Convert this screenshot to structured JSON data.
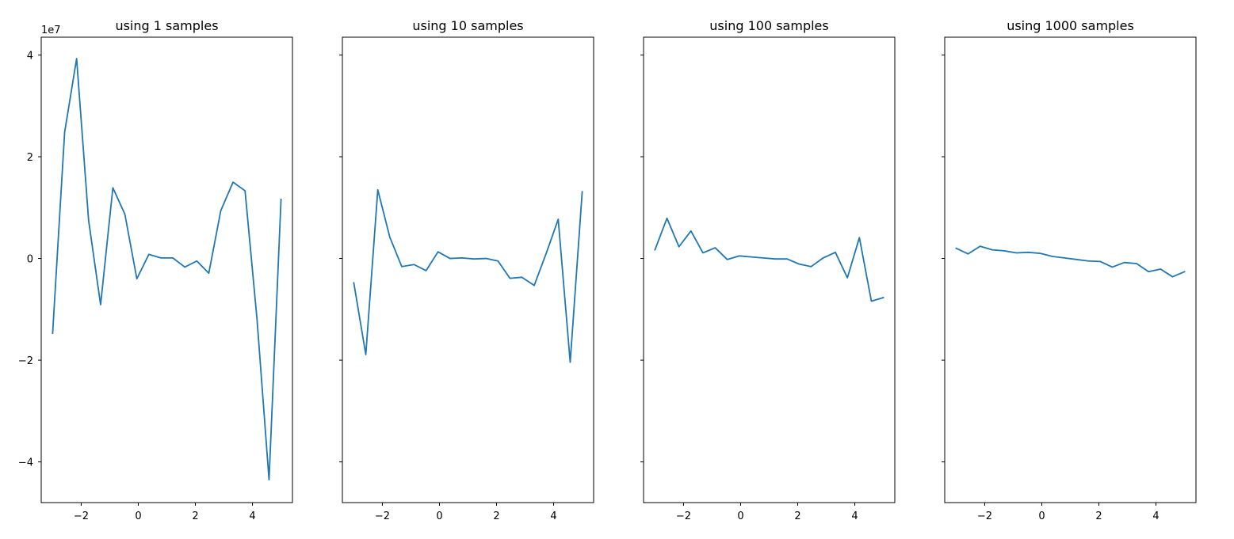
{
  "chart_data": [
    {
      "type": "line",
      "title": "using 1 samples",
      "xlabel": "",
      "ylabel": "",
      "y_offset_text": "1e7",
      "show_y_tick_labels": true,
      "xlim": [
        -3.4,
        5.4
      ],
      "ylim": [
        -4.8,
        4.35
      ],
      "y_scale_note": "values in units of 1e7",
      "x_ticks": [
        -2,
        0,
        2,
        4
      ],
      "x_tick_labels": [
        "−2",
        "0",
        "2",
        "4"
      ],
      "y_ticks": [
        -4,
        -2,
        0,
        2,
        4
      ],
      "y_tick_labels": [
        "−4",
        "−2",
        "0",
        "2",
        "4"
      ],
      "color": "#1f77b4",
      "x": [
        -3.0,
        -2.58,
        -2.16,
        -1.74,
        -1.32,
        -0.89,
        -0.47,
        -0.05,
        0.37,
        0.79,
        1.21,
        1.63,
        2.05,
        2.47,
        2.89,
        3.32,
        3.74,
        4.16,
        4.58,
        5.0
      ],
      "values": [
        -1.47,
        2.48,
        3.93,
        0.75,
        -0.91,
        1.39,
        0.87,
        -0.4,
        0.08,
        0.01,
        0.01,
        -0.17,
        -0.05,
        -0.29,
        0.94,
        1.5,
        1.33,
        -1.2,
        -4.35,
        1.16
      ]
    },
    {
      "type": "line",
      "title": "using 10 samples",
      "xlabel": "",
      "ylabel": "",
      "show_y_tick_labels": false,
      "xlim": [
        -3.4,
        5.4
      ],
      "ylim": [
        -4.8,
        4.35
      ],
      "x_ticks": [
        -2,
        0,
        2,
        4
      ],
      "x_tick_labels": [
        "−2",
        "0",
        "2",
        "4"
      ],
      "y_ticks": [
        -4,
        -2,
        0,
        2,
        4
      ],
      "color": "#1f77b4",
      "x": [
        -3.0,
        -2.58,
        -2.16,
        -1.74,
        -1.32,
        -0.89,
        -0.47,
        -0.05,
        0.37,
        0.79,
        1.21,
        1.63,
        2.05,
        2.47,
        2.89,
        3.32,
        3.74,
        4.16,
        4.58,
        5.0
      ],
      "values": [
        -0.48,
        -1.89,
        1.35,
        0.42,
        -0.16,
        -0.12,
        -0.24,
        0.13,
        0.0,
        0.01,
        -0.01,
        0.0,
        -0.05,
        -0.39,
        -0.37,
        -0.53,
        0.1,
        0.77,
        -2.04,
        1.31
      ]
    },
    {
      "type": "line",
      "title": "using 100 samples",
      "xlabel": "",
      "ylabel": "",
      "show_y_tick_labels": false,
      "xlim": [
        -3.4,
        5.4
      ],
      "ylim": [
        -4.8,
        4.35
      ],
      "x_ticks": [
        -2,
        0,
        2,
        4
      ],
      "x_tick_labels": [
        "−2",
        "0",
        "2",
        "4"
      ],
      "y_ticks": [
        -4,
        -2,
        0,
        2,
        4
      ],
      "color": "#1f77b4",
      "x": [
        -3.0,
        -2.58,
        -2.16,
        -1.74,
        -1.32,
        -0.89,
        -0.47,
        -0.05,
        0.37,
        0.79,
        1.21,
        1.63,
        2.05,
        2.47,
        2.89,
        3.32,
        3.74,
        4.16,
        4.58,
        5.0
      ],
      "values": [
        0.17,
        0.79,
        0.23,
        0.54,
        0.11,
        0.21,
        -0.02,
        0.05,
        0.03,
        0.01,
        -0.01,
        -0.01,
        -0.11,
        -0.16,
        0.01,
        0.12,
        -0.38,
        0.41,
        -0.84,
        -0.77
      ]
    },
    {
      "type": "line",
      "title": "using 1000 samples",
      "xlabel": "",
      "ylabel": "",
      "show_y_tick_labels": false,
      "xlim": [
        -3.4,
        5.4
      ],
      "ylim": [
        -4.8,
        4.35
      ],
      "x_ticks": [
        -2,
        0,
        2,
        4
      ],
      "x_tick_labels": [
        "−2",
        "0",
        "2",
        "4"
      ],
      "y_ticks": [
        -4,
        -2,
        0,
        2,
        4
      ],
      "color": "#1f77b4",
      "x": [
        -3.0,
        -2.58,
        -2.16,
        -1.74,
        -1.32,
        -0.89,
        -0.47,
        -0.05,
        0.37,
        0.79,
        1.21,
        1.63,
        2.05,
        2.47,
        2.89,
        3.32,
        3.74,
        4.16,
        4.58,
        5.0
      ],
      "values": [
        0.2,
        0.09,
        0.24,
        0.17,
        0.15,
        0.11,
        0.12,
        0.1,
        0.04,
        0.01,
        -0.02,
        -0.05,
        -0.06,
        -0.17,
        -0.08,
        -0.1,
        -0.26,
        -0.21,
        -0.36,
        -0.26
      ]
    }
  ]
}
